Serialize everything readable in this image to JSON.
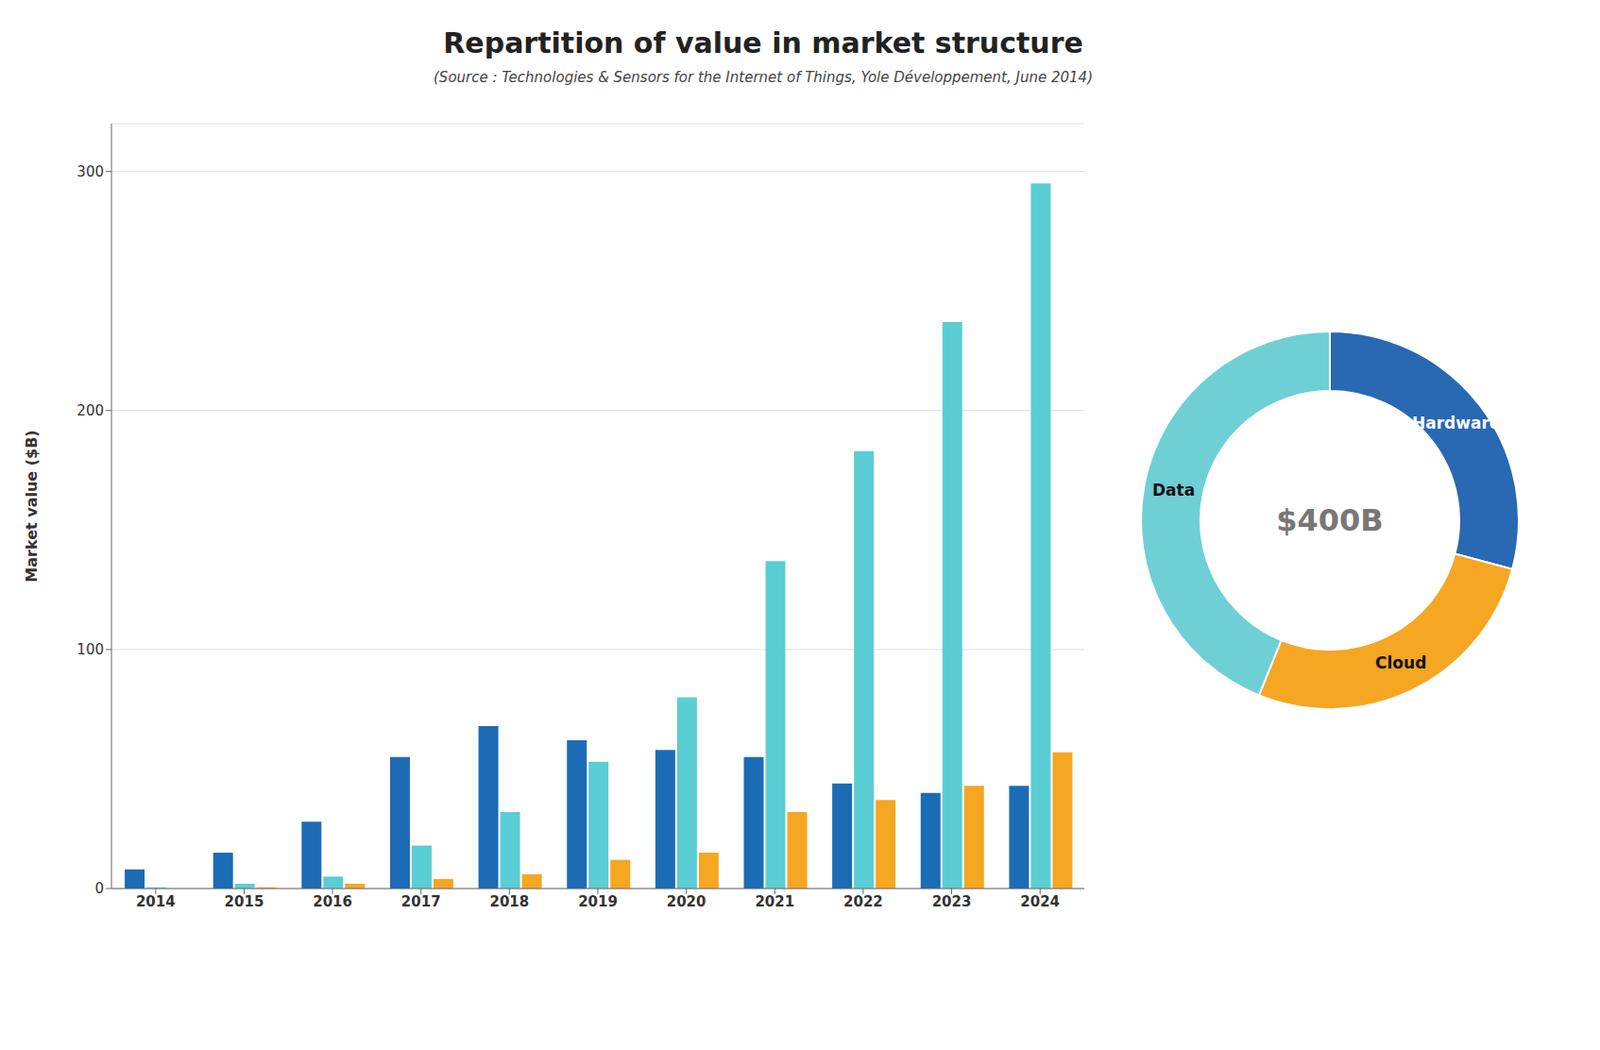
{
  "chart_data": [
    {
      "type": "bar",
      "title": "Repartition of value in market structure",
      "subtitle": "(Source : Technologies & Sensors for the Internet of Things, Yole Développement, June 2014)",
      "ylabel": "Market value ($B)",
      "categories": [
        2014,
        2015,
        2016,
        2017,
        2018,
        2019,
        2020,
        2021,
        2022,
        2023,
        2024
      ],
      "series": [
        {
          "name": "Hardware",
          "color": "#1B6BB5",
          "values": [
            8,
            15,
            28,
            55,
            68,
            62,
            58,
            55,
            44,
            40,
            43
          ]
        },
        {
          "name": "Data",
          "color": "#5BCDD4",
          "values": [
            0.5,
            2,
            5,
            18,
            32,
            53,
            80,
            137,
            183,
            237,
            295
          ]
        },
        {
          "name": "Cloud",
          "color": "#F5A623",
          "values": [
            0,
            0.5,
            2,
            4,
            6,
            12,
            15,
            32,
            37,
            43,
            57
          ]
        }
      ],
      "ylim": [
        0,
        320
      ],
      "yticks": [
        0,
        100,
        200,
        300
      ],
      "grid": true
    },
    {
      "type": "donut",
      "categories": [
        "Hardware",
        "Data",
        "Cloud"
      ],
      "values": [
        105,
        158,
        97
      ],
      "colors": [
        "#2968B2",
        "#6ECFD5",
        "#F5A623"
      ],
      "annotations": [
        "$400B"
      ]
    }
  ]
}
